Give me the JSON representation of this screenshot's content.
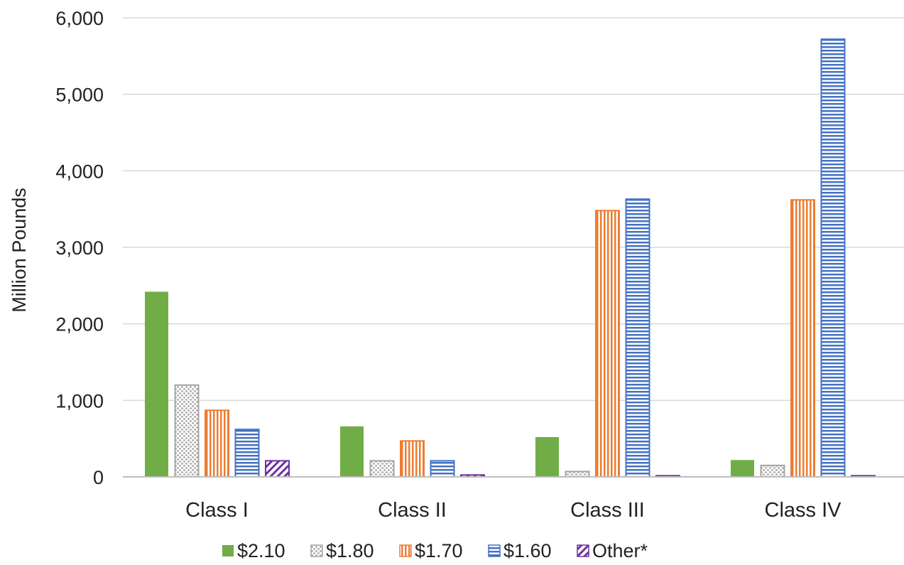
{
  "chart_data": {
    "type": "bar",
    "title": "",
    "xlabel": "",
    "ylabel": "Million Pounds",
    "ylim": [
      0,
      6000
    ],
    "yticks": [
      0,
      1000,
      2000,
      3000,
      4000,
      5000,
      6000
    ],
    "ytick_labels": [
      "0",
      "1,000",
      "2,000",
      "3,000",
      "4,000",
      "5,000",
      "6,000"
    ],
    "grid": true,
    "legend_position": "bottom",
    "categories": [
      "Class I",
      "Class II",
      "Class III",
      "Class IV"
    ],
    "series": [
      {
        "name": "$2.10",
        "values": [
          2420,
          660,
          520,
          220
        ],
        "color": "#70ad47",
        "pattern": "solid"
      },
      {
        "name": "$1.80",
        "values": [
          1200,
          210,
          70,
          150
        ],
        "color": "#a5a5a5",
        "pattern": "dots"
      },
      {
        "name": "$1.70",
        "values": [
          870,
          470,
          3480,
          3620
        ],
        "color": "#ed7d31",
        "pattern": "vertical-lines"
      },
      {
        "name": "$1.60",
        "values": [
          620,
          210,
          3630,
          5720
        ],
        "color": "#4472c4",
        "pattern": "horizontal-lines"
      },
      {
        "name": "Other*",
        "values": [
          210,
          25,
          15,
          15
        ],
        "color": "#7030a0",
        "pattern": "diagonal-lines"
      }
    ]
  }
}
